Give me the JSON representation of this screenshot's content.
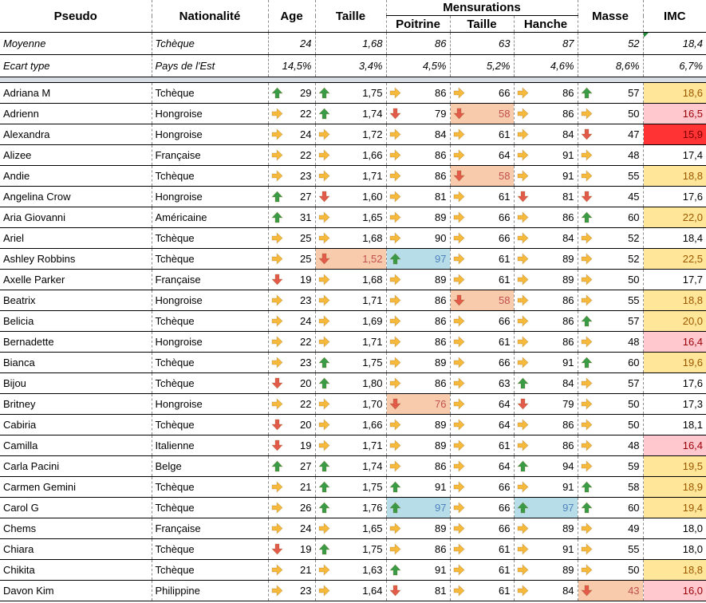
{
  "headers": {
    "pseudo": "Pseudo",
    "nationalite": "Nationalité",
    "age": "Age",
    "taille": "Taille",
    "mensurations": "Mensurations",
    "poitrine": "Poitrine",
    "taille_m": "Taille",
    "hanche": "Hanche",
    "masse": "Masse",
    "imc": "IMC"
  },
  "stats": [
    {
      "label": "Moyenne",
      "nat": "Tchèque",
      "age": "24",
      "taille": "1,68",
      "poitrine": "86",
      "taille_m": "63",
      "hanche": "87",
      "masse": "52",
      "imc": "18,4"
    },
    {
      "label": "Ecart type",
      "nat": "Pays de l'Est",
      "age": "14,5%",
      "taille": "3,4%",
      "poitrine": "4,5%",
      "taille_m": "5,2%",
      "hanche": "4,6%",
      "masse": "8,6%",
      "imc": "6,7%"
    }
  ],
  "colors": {
    "up": "#3a9b47",
    "right": "#f6b93b",
    "down": "#e25a4a",
    "salmon": "#f8cbad",
    "blue": "#b7dee8",
    "imc_yellow": "#ffe699",
    "imc_pink": "#ffc7ce",
    "imc_red": "#ff3333"
  },
  "rows": [
    {
      "name": "Adriana M",
      "nat": "Tchèque",
      "age": "29",
      "age_a": "up",
      "taille": "1,75",
      "taille_a": "up",
      "poitrine": "86",
      "poitrine_a": "right",
      "taille_m": "66",
      "taille_m_a": "right",
      "hanche": "86",
      "hanche_a": "right",
      "masse": "57",
      "masse_a": "up",
      "imc": "18,6",
      "imc_f": "y"
    },
    {
      "name": "Adrienn",
      "nat": "Hongroise",
      "age": "22",
      "age_a": "right",
      "taille": "1,74",
      "taille_a": "up",
      "poitrine": "79",
      "poitrine_a": "down",
      "taille_m": "58",
      "taille_m_a": "down",
      "taille_m_f": "salmon",
      "hanche": "86",
      "hanche_a": "right",
      "masse": "50",
      "masse_a": "right",
      "imc": "16,5",
      "imc_f": "p"
    },
    {
      "name": "Alexandra",
      "nat": "Hongroise",
      "age": "24",
      "age_a": "right",
      "taille": "1,72",
      "taille_a": "right",
      "poitrine": "84",
      "poitrine_a": "right",
      "taille_m": "61",
      "taille_m_a": "right",
      "hanche": "84",
      "hanche_a": "right",
      "masse": "47",
      "masse_a": "down",
      "imc": "15,9",
      "imc_f": "r"
    },
    {
      "name": "Alizee",
      "nat": "Française",
      "age": "22",
      "age_a": "right",
      "taille": "1,66",
      "taille_a": "right",
      "poitrine": "86",
      "poitrine_a": "right",
      "taille_m": "64",
      "taille_m_a": "right",
      "hanche": "91",
      "hanche_a": "right",
      "masse": "48",
      "masse_a": "right",
      "imc": "17,4",
      "imc_f": ""
    },
    {
      "name": "Andie",
      "nat": "Tchèque",
      "age": "23",
      "age_a": "right",
      "taille": "1,71",
      "taille_a": "right",
      "poitrine": "86",
      "poitrine_a": "right",
      "taille_m": "58",
      "taille_m_a": "down",
      "taille_m_f": "salmon",
      "hanche": "91",
      "hanche_a": "right",
      "masse": "55",
      "masse_a": "right",
      "imc": "18,8",
      "imc_f": "y"
    },
    {
      "name": "Angelina Crow",
      "nat": "Hongroise",
      "age": "27",
      "age_a": "up",
      "taille": "1,60",
      "taille_a": "down",
      "poitrine": "81",
      "poitrine_a": "right",
      "taille_m": "61",
      "taille_m_a": "right",
      "hanche": "81",
      "hanche_a": "down",
      "masse": "45",
      "masse_a": "down",
      "imc": "17,6",
      "imc_f": ""
    },
    {
      "name": "Aria Giovanni",
      "nat": "Américaine",
      "age": "31",
      "age_a": "up",
      "taille": "1,65",
      "taille_a": "right",
      "poitrine": "89",
      "poitrine_a": "right",
      "taille_m": "66",
      "taille_m_a": "right",
      "hanche": "86",
      "hanche_a": "right",
      "masse": "60",
      "masse_a": "up",
      "imc": "22,0",
      "imc_f": "y"
    },
    {
      "name": "Ariel",
      "nat": "Tchèque",
      "age": "25",
      "age_a": "right",
      "taille": "1,68",
      "taille_a": "right",
      "poitrine": "90",
      "poitrine_a": "right",
      "taille_m": "66",
      "taille_m_a": "right",
      "hanche": "84",
      "hanche_a": "right",
      "masse": "52",
      "masse_a": "right",
      "imc": "18,4",
      "imc_f": ""
    },
    {
      "name": "Ashley Robbins",
      "nat": "Tchèque",
      "age": "25",
      "age_a": "right",
      "taille": "1,52",
      "taille_a": "down",
      "taille_f": "salmon",
      "poitrine": "97",
      "poitrine_a": "up",
      "poitrine_f": "blue",
      "taille_m": "61",
      "taille_m_a": "right",
      "hanche": "89",
      "hanche_a": "right",
      "masse": "52",
      "masse_a": "right",
      "imc": "22,5",
      "imc_f": "y"
    },
    {
      "name": "Axelle Parker",
      "nat": "Française",
      "age": "19",
      "age_a": "down",
      "taille": "1,68",
      "taille_a": "right",
      "poitrine": "89",
      "poitrine_a": "right",
      "taille_m": "61",
      "taille_m_a": "right",
      "hanche": "89",
      "hanche_a": "right",
      "masse": "50",
      "masse_a": "right",
      "imc": "17,7",
      "imc_f": ""
    },
    {
      "name": "Beatrix",
      "nat": "Hongroise",
      "age": "23",
      "age_a": "right",
      "taille": "1,71",
      "taille_a": "right",
      "poitrine": "86",
      "poitrine_a": "right",
      "taille_m": "58",
      "taille_m_a": "down",
      "taille_m_f": "salmon",
      "hanche": "86",
      "hanche_a": "right",
      "masse": "55",
      "masse_a": "right",
      "imc": "18,8",
      "imc_f": "y"
    },
    {
      "name": "Belicia",
      "nat": "Tchèque",
      "age": "24",
      "age_a": "right",
      "taille": "1,69",
      "taille_a": "right",
      "poitrine": "86",
      "poitrine_a": "right",
      "taille_m": "66",
      "taille_m_a": "right",
      "hanche": "86",
      "hanche_a": "right",
      "masse": "57",
      "masse_a": "up",
      "imc": "20,0",
      "imc_f": "y"
    },
    {
      "name": "Bernadette",
      "nat": "Hongroise",
      "age": "22",
      "age_a": "right",
      "taille": "1,71",
      "taille_a": "right",
      "poitrine": "86",
      "poitrine_a": "right",
      "taille_m": "61",
      "taille_m_a": "right",
      "hanche": "86",
      "hanche_a": "right",
      "masse": "48",
      "masse_a": "right",
      "imc": "16,4",
      "imc_f": "p"
    },
    {
      "name": "Bianca",
      "nat": "Tchèque",
      "age": "23",
      "age_a": "right",
      "taille": "1,75",
      "taille_a": "up",
      "poitrine": "89",
      "poitrine_a": "right",
      "taille_m": "66",
      "taille_m_a": "right",
      "hanche": "91",
      "hanche_a": "right",
      "masse": "60",
      "masse_a": "up",
      "imc": "19,6",
      "imc_f": "y"
    },
    {
      "name": "Bijou",
      "nat": "Tchèque",
      "age": "20",
      "age_a": "down",
      "taille": "1,80",
      "taille_a": "up",
      "poitrine": "86",
      "poitrine_a": "right",
      "taille_m": "63",
      "taille_m_a": "right",
      "hanche": "84",
      "hanche_a": "up",
      "masse": "57",
      "masse_a": "right",
      "imc": "17,6",
      "imc_f": ""
    },
    {
      "name": "Britney",
      "nat": "Hongroise",
      "age": "22",
      "age_a": "right",
      "taille": "1,70",
      "taille_a": "right",
      "poitrine": "76",
      "poitrine_a": "down",
      "poitrine_f": "salmon",
      "taille_m": "64",
      "taille_m_a": "right",
      "hanche": "79",
      "hanche_a": "down",
      "masse": "50",
      "masse_a": "right",
      "imc": "17,3",
      "imc_f": ""
    },
    {
      "name": "Cabiria",
      "nat": "Tchèque",
      "age": "20",
      "age_a": "down",
      "taille": "1,66",
      "taille_a": "right",
      "poitrine": "89",
      "poitrine_a": "right",
      "taille_m": "64",
      "taille_m_a": "right",
      "hanche": "86",
      "hanche_a": "right",
      "masse": "50",
      "masse_a": "right",
      "imc": "18,1",
      "imc_f": ""
    },
    {
      "name": "Camilla",
      "nat": "Italienne",
      "age": "19",
      "age_a": "down",
      "taille": "1,71",
      "taille_a": "right",
      "poitrine": "89",
      "poitrine_a": "right",
      "taille_m": "61",
      "taille_m_a": "right",
      "hanche": "86",
      "hanche_a": "right",
      "masse": "48",
      "masse_a": "right",
      "imc": "16,4",
      "imc_f": "p"
    },
    {
      "name": "Carla Pacini",
      "nat": "Belge",
      "age": "27",
      "age_a": "up",
      "taille": "1,74",
      "taille_a": "up",
      "poitrine": "86",
      "poitrine_a": "right",
      "taille_m": "64",
      "taille_m_a": "right",
      "hanche": "94",
      "hanche_a": "up",
      "masse": "59",
      "masse_a": "right",
      "imc": "19,5",
      "imc_f": "y"
    },
    {
      "name": "Carmen Gemini",
      "nat": "Tchèque",
      "age": "21",
      "age_a": "right",
      "taille": "1,75",
      "taille_a": "up",
      "poitrine": "91",
      "poitrine_a": "up",
      "taille_m": "66",
      "taille_m_a": "right",
      "hanche": "91",
      "hanche_a": "right",
      "masse": "58",
      "masse_a": "up",
      "imc": "18,9",
      "imc_f": "y"
    },
    {
      "name": "Carol G",
      "nat": "Tchèque",
      "age": "26",
      "age_a": "right",
      "taille": "1,76",
      "taille_a": "up",
      "poitrine": "97",
      "poitrine_a": "up",
      "poitrine_f": "blue",
      "taille_m": "66",
      "taille_m_a": "right",
      "hanche": "97",
      "hanche_a": "up",
      "hanche_f": "blue",
      "masse": "60",
      "masse_a": "up",
      "imc": "19,4",
      "imc_f": "y"
    },
    {
      "name": "Chems",
      "nat": "Française",
      "age": "24",
      "age_a": "right",
      "taille": "1,65",
      "taille_a": "right",
      "poitrine": "89",
      "poitrine_a": "right",
      "taille_m": "66",
      "taille_m_a": "right",
      "hanche": "89",
      "hanche_a": "right",
      "masse": "49",
      "masse_a": "right",
      "imc": "18,0",
      "imc_f": ""
    },
    {
      "name": "Chiara",
      "nat": "Tchèque",
      "age": "19",
      "age_a": "down",
      "taille": "1,75",
      "taille_a": "up",
      "poitrine": "86",
      "poitrine_a": "right",
      "taille_m": "61",
      "taille_m_a": "right",
      "hanche": "91",
      "hanche_a": "right",
      "masse": "55",
      "masse_a": "right",
      "imc": "18,0",
      "imc_f": ""
    },
    {
      "name": "Chikita",
      "nat": "Tchèque",
      "age": "21",
      "age_a": "right",
      "taille": "1,63",
      "taille_a": "right",
      "poitrine": "91",
      "poitrine_a": "up",
      "taille_m": "61",
      "taille_m_a": "right",
      "hanche": "89",
      "hanche_a": "right",
      "masse": "50",
      "masse_a": "right",
      "imc": "18,8",
      "imc_f": "y"
    },
    {
      "name": "Davon Kim",
      "nat": "Philippine",
      "age": "23",
      "age_a": "right",
      "taille": "1,64",
      "taille_a": "right",
      "poitrine": "81",
      "poitrine_a": "down",
      "taille_m": "61",
      "taille_m_a": "right",
      "hanche": "84",
      "hanche_a": "right",
      "masse": "43",
      "masse_a": "down",
      "masse_f": "salmon",
      "imc": "16,0",
      "imc_f": "p"
    }
  ]
}
